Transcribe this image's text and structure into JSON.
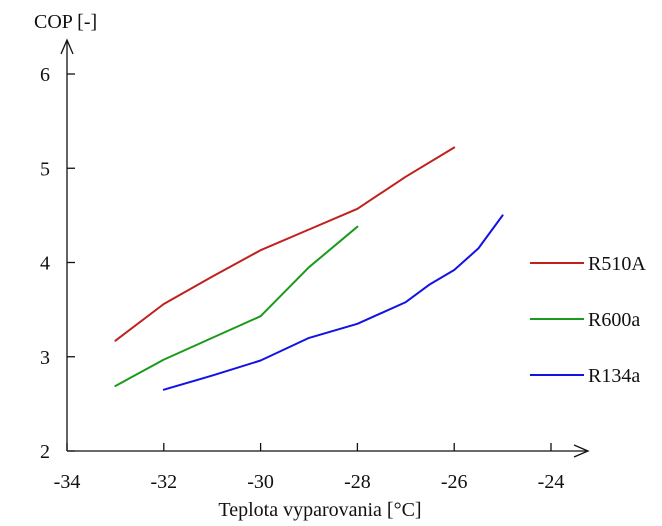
{
  "chart_data": {
    "type": "line",
    "xlabel": "Teplota vyparovania [°C]",
    "ylabel": "COP [-]",
    "xlim": [
      -34,
      -24
    ],
    "ylim": [
      2,
      6
    ],
    "x_ticks": [
      "-34",
      "-32",
      "-30",
      "-28",
      "-26",
      "-24"
    ],
    "y_ticks": [
      "2",
      "3",
      "4",
      "5",
      "6"
    ],
    "legend_position": "right",
    "grid": false,
    "series": [
      {
        "name": "R510A",
        "color": "#c0201e",
        "x": [
          -33,
          -32,
          -31,
          -30,
          -29,
          -28,
          -27,
          -26
        ],
        "y": [
          3.17,
          3.56,
          3.85,
          4.13,
          4.35,
          4.57,
          4.91,
          5.22
        ]
      },
      {
        "name": "R600a",
        "color": "#1a9a1a",
        "x": [
          -33,
          -32,
          -31,
          -30,
          -29,
          -28
        ],
        "y": [
          2.69,
          2.97,
          3.2,
          3.43,
          3.95,
          4.38
        ]
      },
      {
        "name": "R134a",
        "color": "#1212e6",
        "x": [
          -32,
          -31,
          -30,
          -29,
          -28,
          -27,
          -26.5,
          -26,
          -25.5,
          -25
        ],
        "y": [
          2.65,
          2.8,
          2.96,
          3.2,
          3.35,
          3.58,
          3.77,
          3.92,
          4.15,
          4.5
        ]
      }
    ]
  }
}
